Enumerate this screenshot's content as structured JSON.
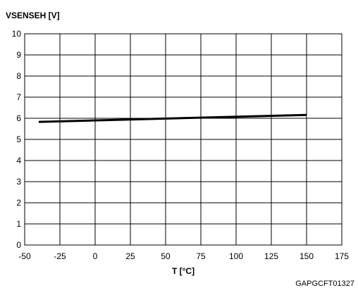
{
  "chart_data": {
    "type": "line",
    "ylabel": "VSENSEH [V]",
    "xlabel": "T [°C]",
    "xlim": [
      -50,
      175
    ],
    "ylim": [
      0,
      10
    ],
    "x_ticks": [
      "-50",
      "-25",
      "0",
      "25",
      "50",
      "75",
      "100",
      "125",
      "150",
      "175"
    ],
    "y_ticks": [
      "0",
      "1",
      "2",
      "3",
      "4",
      "5",
      "6",
      "7",
      "8",
      "9",
      "10"
    ],
    "grid": true,
    "legend": "none",
    "series": [
      {
        "color": "#000000",
        "x": [
          -40,
          150
        ],
        "y": [
          5.83,
          6.16
        ]
      }
    ],
    "figure_code": "GAPGCFT01327"
  }
}
